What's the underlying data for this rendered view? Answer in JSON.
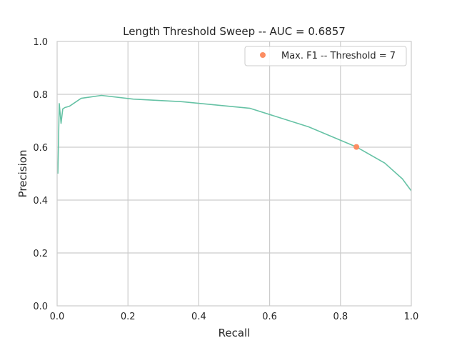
{
  "chart_data": {
    "type": "line",
    "title": "Length Threshold Sweep -- AUC = 0.6857",
    "xlabel": "Recall",
    "ylabel": "Precision",
    "xlim": [
      0.0,
      1.0
    ],
    "ylim": [
      0.0,
      1.0
    ],
    "xticks": [
      "0.0",
      "0.2",
      "0.4",
      "0.6",
      "0.8",
      "1.0"
    ],
    "yticks": [
      "0.0",
      "0.2",
      "0.4",
      "0.6",
      "0.8",
      "1.0"
    ],
    "grid": true,
    "legend_position": "top-right",
    "series": [
      {
        "color": "#66c2a5",
        "x": [
          0.002,
          0.006,
          0.011,
          0.016,
          0.022,
          0.035,
          0.068,
          0.125,
          0.215,
          0.355,
          0.545,
          0.71,
          0.845,
          0.925,
          0.975,
          1.0
        ],
        "y": [
          0.5,
          0.765,
          0.69,
          0.745,
          0.75,
          0.755,
          0.785,
          0.796,
          0.782,
          0.772,
          0.747,
          0.677,
          0.601,
          0.54,
          0.48,
          0.435
        ]
      }
    ],
    "marker": {
      "name": "Max. F1 -- Threshold = 7",
      "x": 0.845,
      "y": 0.601,
      "color": "#fc8d62"
    }
  }
}
